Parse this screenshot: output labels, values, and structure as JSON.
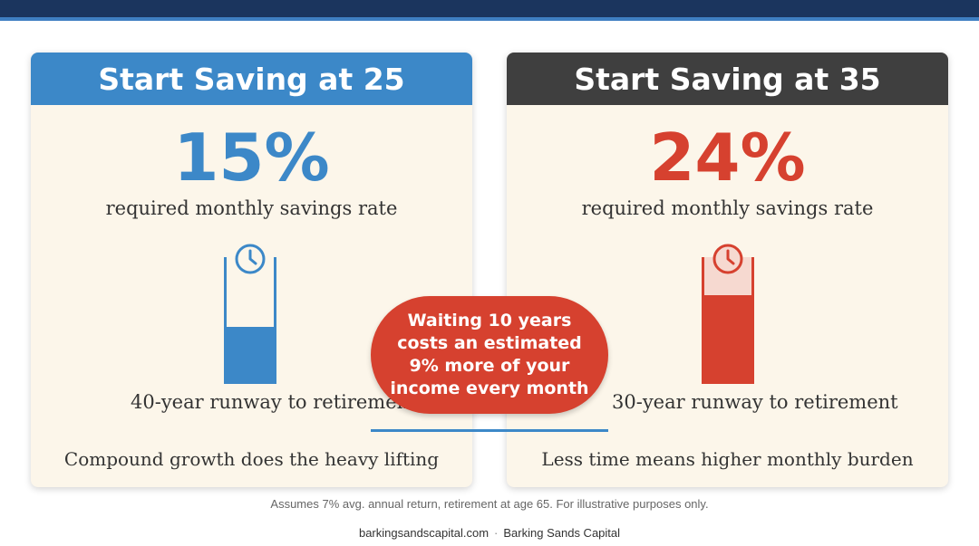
{
  "left_card": {
    "title": "Start Saving at 25",
    "rate": "15%",
    "rate_label": "required monthly savings rate",
    "gauge_level": 0.45,
    "runway": "40-year runway to retirement",
    "tagline": "Compound growth does the heavy lifting",
    "accent_color": "#3c88c8",
    "icon": "clock-icon"
  },
  "right_card": {
    "title": "Start Saving at 35",
    "rate": "24%",
    "rate_label": "required monthly savings rate",
    "gauge_level": 0.7,
    "runway": "30-year runway to retirement",
    "tagline": "Less time means higher monthly burden",
    "accent_color": "#d6412f",
    "icon": "clock-icon"
  },
  "callout": {
    "text": "Waiting 10 years costs an estimated 9% more of your income every month"
  },
  "footnote": "Assumes 7% avg. annual return, retirement at age 65. For illustrative purposes only.",
  "footer": {
    "site": "barkingsandscapital.com",
    "separator": "·",
    "company": "Barking Sands Capital"
  }
}
